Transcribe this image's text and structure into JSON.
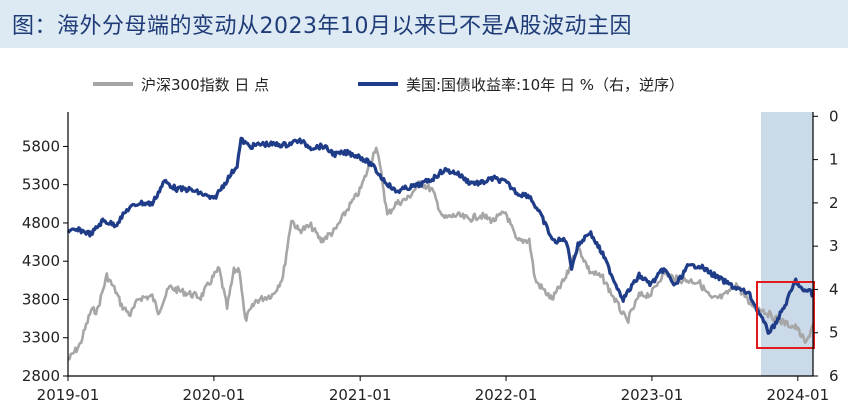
{
  "title": "图：海外分母端的变动从2023年10月以来已不是A股波动主因",
  "colors": {
    "csi300": "#a6a6a6",
    "yield": "#1f3c88",
    "highlight_band": "#b8cde2",
    "highlight_box": "#e31a1c",
    "title_bg": "#dde9f3",
    "title_text": "#1f3c78"
  },
  "legend": {
    "csi300": "沪深300指数 日 点",
    "yield": "美国:国债收益率:10年 日 %（右，逆序）"
  },
  "chart_data": {
    "type": "line",
    "x_ticks": [
      "2019-01",
      "2020-01",
      "2021-01",
      "2022-01",
      "2023-01",
      "2024-01"
    ],
    "x_range": [
      "2019-01-01",
      "2024-02-08"
    ],
    "y_left": {
      "ticks": [
        2800,
        3300,
        3800,
        4300,
        4800,
        5300,
        5800
      ],
      "range": [
        2800,
        6250
      ]
    },
    "y_right": {
      "ticks": [
        0,
        1,
        2,
        3,
        4,
        5,
        6
      ],
      "range": [
        6,
        -0.1
      ],
      "inverted": true
    },
    "highlight_period": [
      "2023-10-01",
      "2024-02-08"
    ],
    "series": [
      {
        "name": "沪深300指数 日 点",
        "axis": "left",
        "points": [
          [
            "2019-01-02",
            3010
          ],
          [
            "2019-01-31",
            3210
          ],
          [
            "2019-02-28",
            3660
          ],
          [
            "2019-03-15",
            3650
          ],
          [
            "2019-04-08",
            4110
          ],
          [
            "2019-04-30",
            3910
          ],
          [
            "2019-05-15",
            3720
          ],
          [
            "2019-06-06",
            3600
          ],
          [
            "2019-06-28",
            3820
          ],
          [
            "2019-07-31",
            3840
          ],
          [
            "2019-08-15",
            3640
          ],
          [
            "2019-09-12",
            3960
          ],
          [
            "2019-10-15",
            3900
          ],
          [
            "2019-11-29",
            3830
          ],
          [
            "2019-12-31",
            4100
          ],
          [
            "2020-01-14",
            4200
          ],
          [
            "2020-02-03",
            3690
          ],
          [
            "2020-02-20",
            4170
          ],
          [
            "2020-03-05",
            4200
          ],
          [
            "2020-03-19",
            3530
          ],
          [
            "2020-04-15",
            3780
          ],
          [
            "2020-05-29",
            3870
          ],
          [
            "2020-06-22",
            4100
          ],
          [
            "2020-07-06",
            4600
          ],
          [
            "2020-07-13",
            4850
          ],
          [
            "2020-07-31",
            4700
          ],
          [
            "2020-08-31",
            4760
          ],
          [
            "2020-09-25",
            4570
          ],
          [
            "2020-10-30",
            4700
          ],
          [
            "2020-11-30",
            4980
          ],
          [
            "2020-12-31",
            5220
          ],
          [
            "2021-01-25",
            5560
          ],
          [
            "2021-02-10",
            5810
          ],
          [
            "2021-02-26",
            5340
          ],
          [
            "2021-03-10",
            4900
          ],
          [
            "2021-03-31",
            5050
          ],
          [
            "2021-04-30",
            5120
          ],
          [
            "2021-05-31",
            5330
          ],
          [
            "2021-06-30",
            5230
          ],
          [
            "2021-07-28",
            4860
          ],
          [
            "2021-08-31",
            4900
          ],
          [
            "2021-09-30",
            4850
          ],
          [
            "2021-10-29",
            4900
          ],
          [
            "2021-11-30",
            4830
          ],
          [
            "2021-12-31",
            4940
          ],
          [
            "2022-01-28",
            4560
          ],
          [
            "2022-02-28",
            4580
          ],
          [
            "2022-03-15",
            4050
          ],
          [
            "2022-04-26",
            3800
          ],
          [
            "2022-05-31",
            4090
          ],
          [
            "2022-06-30",
            4490
          ],
          [
            "2022-07-29",
            4170
          ],
          [
            "2022-08-31",
            4080
          ],
          [
            "2022-09-30",
            3800
          ],
          [
            "2022-10-31",
            3510
          ],
          [
            "2022-11-30",
            3850
          ],
          [
            "2022-12-30",
            3870
          ],
          [
            "2023-01-31",
            4160
          ],
          [
            "2023-02-28",
            4070
          ],
          [
            "2023-03-31",
            4050
          ],
          [
            "2023-04-28",
            4030
          ],
          [
            "2023-05-31",
            3800
          ],
          [
            "2023-06-30",
            3840
          ],
          [
            "2023-07-31",
            4000
          ],
          [
            "2023-08-31",
            3760
          ],
          [
            "2023-09-28",
            3690
          ],
          [
            "2023-10-31",
            3570
          ],
          [
            "2023-11-30",
            3490
          ],
          [
            "2023-12-29",
            3430
          ],
          [
            "2024-01-22",
            3220
          ],
          [
            "2024-02-08",
            3480
          ]
        ]
      },
      {
        "name": "美国:国债收益率:10年 日 %（右，逆序）",
        "axis": "right",
        "points": [
          [
            "2019-01-02",
            2.66
          ],
          [
            "2019-01-31",
            2.63
          ],
          [
            "2019-02-28",
            2.72
          ],
          [
            "2019-03-29",
            2.41
          ],
          [
            "2019-04-30",
            2.51
          ],
          [
            "2019-05-31",
            2.14
          ],
          [
            "2019-06-28",
            2.0
          ],
          [
            "2019-07-31",
            2.02
          ],
          [
            "2019-08-30",
            1.5
          ],
          [
            "2019-09-30",
            1.68
          ],
          [
            "2019-10-31",
            1.69
          ],
          [
            "2019-11-29",
            1.78
          ],
          [
            "2019-12-31",
            1.92
          ],
          [
            "2020-01-31",
            1.51
          ],
          [
            "2020-02-28",
            1.13
          ],
          [
            "2020-03-09",
            0.54
          ],
          [
            "2020-03-31",
            0.7
          ],
          [
            "2020-04-30",
            0.64
          ],
          [
            "2020-05-29",
            0.65
          ],
          [
            "2020-06-30",
            0.66
          ],
          [
            "2020-07-31",
            0.55
          ],
          [
            "2020-08-31",
            0.72
          ],
          [
            "2020-09-30",
            0.69
          ],
          [
            "2020-10-30",
            0.88
          ],
          [
            "2020-11-30",
            0.84
          ],
          [
            "2020-12-31",
            0.93
          ],
          [
            "2021-01-29",
            1.11
          ],
          [
            "2021-02-26",
            1.44
          ],
          [
            "2021-03-31",
            1.74
          ],
          [
            "2021-04-30",
            1.65
          ],
          [
            "2021-05-28",
            1.59
          ],
          [
            "2021-06-30",
            1.45
          ],
          [
            "2021-07-30",
            1.24
          ],
          [
            "2021-08-31",
            1.31
          ],
          [
            "2021-09-30",
            1.52
          ],
          [
            "2021-10-29",
            1.55
          ],
          [
            "2021-11-30",
            1.43
          ],
          [
            "2021-12-31",
            1.52
          ],
          [
            "2022-01-31",
            1.79
          ],
          [
            "2022-02-28",
            1.83
          ],
          [
            "2022-03-31",
            2.32
          ],
          [
            "2022-04-29",
            2.89
          ],
          [
            "2022-05-31",
            2.85
          ],
          [
            "2022-06-14",
            3.48
          ],
          [
            "2022-06-30",
            2.98
          ],
          [
            "2022-07-29",
            2.67
          ],
          [
            "2022-08-31",
            3.19
          ],
          [
            "2022-09-30",
            3.83
          ],
          [
            "2022-10-21",
            4.22
          ],
          [
            "2022-11-30",
            3.68
          ],
          [
            "2022-12-30",
            3.88
          ],
          [
            "2023-01-31",
            3.52
          ],
          [
            "2023-02-28",
            3.92
          ],
          [
            "2023-03-31",
            3.48
          ],
          [
            "2023-04-28",
            3.44
          ],
          [
            "2023-05-31",
            3.64
          ],
          [
            "2023-06-30",
            3.81
          ],
          [
            "2023-07-31",
            3.97
          ],
          [
            "2023-08-31",
            4.09
          ],
          [
            "2023-09-29",
            4.59
          ],
          [
            "2023-10-19",
            4.98
          ],
          [
            "2023-10-31",
            4.88
          ],
          [
            "2023-11-30",
            4.37
          ],
          [
            "2023-12-27",
            3.79
          ],
          [
            "2024-01-16",
            4.07
          ],
          [
            "2024-01-31",
            3.99
          ],
          [
            "2024-02-08",
            4.17
          ]
        ]
      }
    ]
  }
}
